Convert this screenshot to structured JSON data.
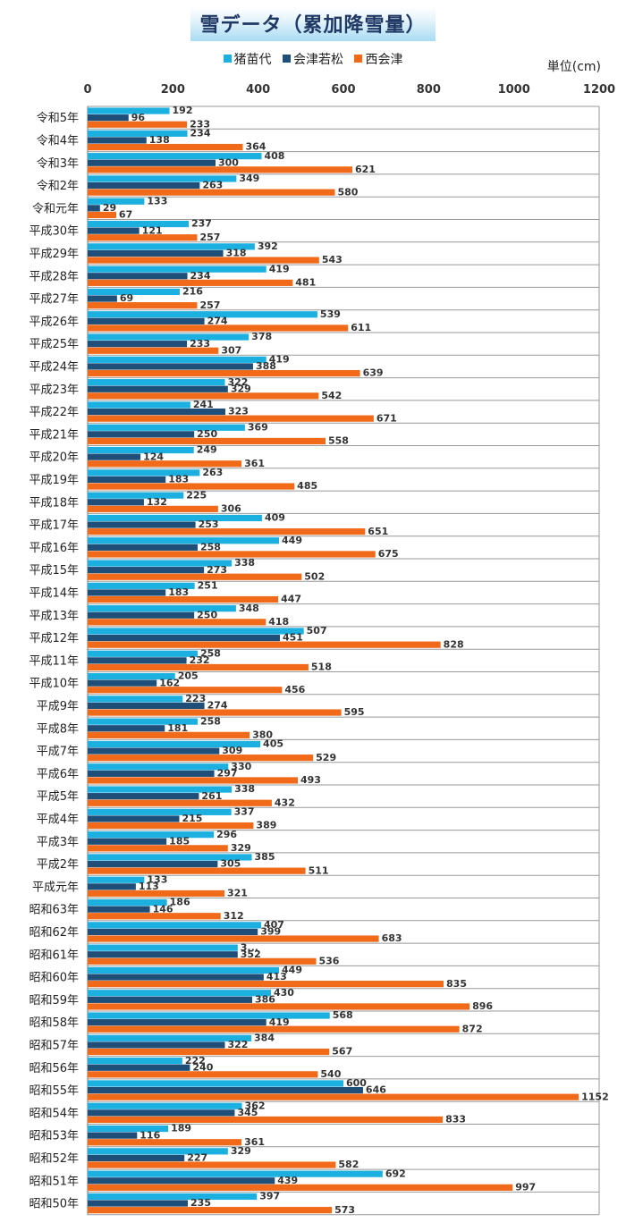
{
  "chart_data": {
    "type": "bar",
    "orientation": "horizontal",
    "title": "雪データ（累加降雪量）",
    "unit": "単位(cm)",
    "xlim": [
      0,
      1200
    ],
    "x_ticks": [
      0,
      200,
      400,
      600,
      800,
      1000,
      1200
    ],
    "x_tick_labels": [
      "0",
      "200",
      "400",
      "600",
      "800",
      "1000",
      "1200"
    ],
    "legend_position": "top",
    "grid": true,
    "categories": [
      "令和5年",
      "令和4年",
      "令和3年",
      "令和2年",
      "令和元年",
      "平成30年",
      "平成29年",
      "平成28年",
      "平成27年",
      "平成26年",
      "平成25年",
      "平成24年",
      "平成23年",
      "平成22年",
      "平成21年",
      "平成20年",
      "平成19年",
      "平成18年",
      "平成17年",
      "平成16年",
      "平成15年",
      "平成14年",
      "平成13年",
      "平成12年",
      "平成11年",
      "平成10年",
      "平成9年",
      "平成8年",
      "平成7年",
      "平成6年",
      "平成5年",
      "平成4年",
      "平成3年",
      "平成2年",
      "平成元年",
      "昭和63年",
      "昭和62年",
      "昭和61年",
      "昭和60年",
      "昭和59年",
      "昭和58年",
      "昭和57年",
      "昭和56年",
      "昭和55年",
      "昭和54年",
      "昭和53年",
      "昭和52年",
      "昭和51年",
      "昭和50年"
    ],
    "series": [
      {
        "name": "猪苗代",
        "color": "#1bb0e0",
        "values": [
          192,
          234,
          408,
          349,
          133,
          237,
          392,
          419,
          216,
          539,
          378,
          419,
          322,
          241,
          369,
          249,
          263,
          225,
          409,
          449,
          338,
          251,
          348,
          507,
          258,
          205,
          223,
          258,
          405,
          330,
          338,
          337,
          296,
          385,
          133,
          186,
          407,
          null,
          449,
          430,
          568,
          384,
          222,
          600,
          362,
          189,
          329,
          692,
          397
        ],
        "labels": [
          "192",
          "234",
          "408",
          "349",
          "133",
          "237",
          "392",
          "419",
          "216",
          "539",
          "378",
          "419",
          "322",
          "241",
          "369",
          "249",
          "263",
          "225",
          "409",
          "449",
          "338",
          "251",
          "348",
          "507",
          "258",
          "205",
          "223",
          "258",
          "405",
          "330",
          "338",
          "337",
          "296",
          "385",
          "133",
          "186",
          "407",
          "3...",
          "449",
          "430",
          "568",
          "384",
          "222",
          "600",
          "362",
          "189",
          "329",
          "692",
          "397"
        ]
      },
      {
        "name": "会津若松",
        "color": "#1f4e79",
        "values": [
          96,
          138,
          300,
          263,
          29,
          121,
          318,
          234,
          69,
          274,
          233,
          388,
          329,
          323,
          250,
          124,
          183,
          132,
          253,
          258,
          273,
          183,
          250,
          451,
          232,
          162,
          274,
          181,
          309,
          297,
          261,
          215,
          185,
          305,
          113,
          146,
          399,
          352,
          413,
          386,
          419,
          322,
          240,
          646,
          345,
          116,
          227,
          439,
          235
        ],
        "labels": [
          "96",
          "138",
          "300",
          "263",
          "29",
          "121",
          "318",
          "234",
          "69",
          "274",
          "233",
          "388",
          "329",
          "323",
          "250",
          "124",
          "183",
          "132",
          "253",
          "258",
          "273",
          "183",
          "250",
          "451",
          "232",
          "162",
          "274",
          "181",
          "309",
          "297",
          "261",
          "215",
          "185",
          "305",
          "113",
          "146",
          "399",
          "352",
          "413",
          "386",
          "419",
          "322",
          "240",
          "646",
          "345",
          "116",
          "227",
          "439",
          "235"
        ]
      },
      {
        "name": "西会津",
        "color": "#f06a1a",
        "values": [
          233,
          364,
          621,
          580,
          67,
          257,
          543,
          481,
          257,
          611,
          307,
          639,
          542,
          671,
          558,
          361,
          485,
          306,
          651,
          675,
          502,
          447,
          418,
          828,
          518,
          456,
          595,
          380,
          529,
          493,
          432,
          389,
          329,
          511,
          321,
          312,
          683,
          536,
          835,
          896,
          872,
          567,
          540,
          1152,
          833,
          361,
          582,
          997,
          573
        ],
        "labels": [
          "233",
          "364",
          "621",
          "580",
          "67",
          "257",
          "543",
          "481",
          "257",
          "611",
          "307",
          "639",
          "542",
          "671",
          "558",
          "361",
          "485",
          "306",
          "651",
          "675",
          "502",
          "447",
          "418",
          "828",
          "518",
          "456",
          "595",
          "380",
          "529",
          "493",
          "432",
          "389",
          "329",
          "511",
          "321",
          "312",
          "683",
          "536",
          "835",
          "896",
          "872",
          "567",
          "540",
          "1152",
          "833",
          "361",
          "582",
          "997",
          "573"
        ]
      }
    ]
  }
}
